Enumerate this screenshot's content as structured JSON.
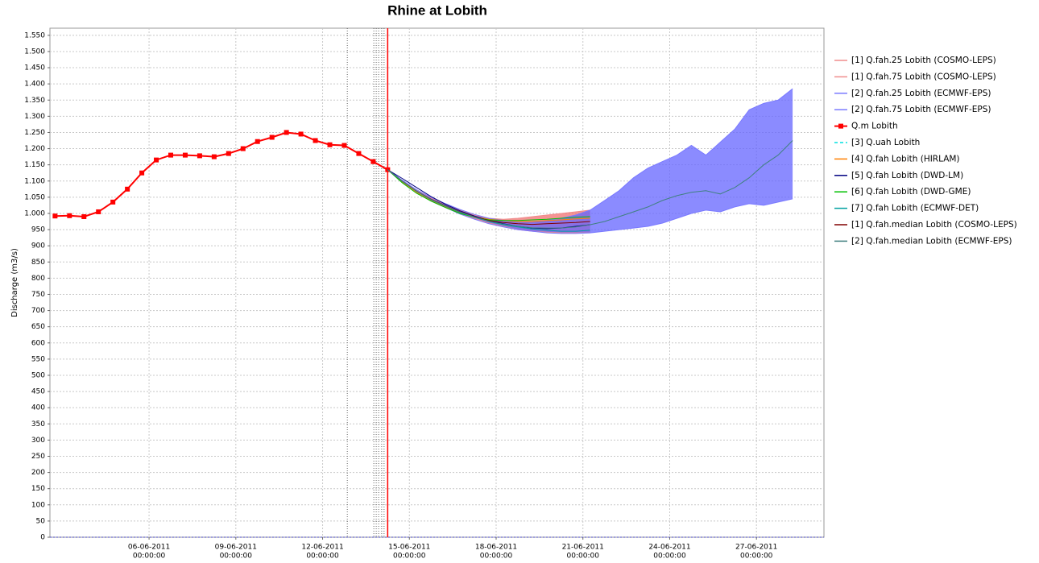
{
  "chart_data": {
    "type": "line",
    "title": "Rhine at Lobith",
    "y_label": "Discharge (m3/s)",
    "ylim": [
      0,
      1572
    ],
    "yticks": [
      0,
      50,
      100,
      150,
      200,
      250,
      300,
      350,
      400,
      450,
      500,
      550,
      600,
      650,
      700,
      750,
      800,
      850,
      900,
      950,
      {
        "value": 1000,
        "label": "1.000"
      },
      {
        "value": 1050,
        "label": "1.050"
      },
      {
        "value": 1100,
        "label": "1.100"
      },
      {
        "value": 1150,
        "label": "1.150"
      },
      {
        "value": 1200,
        "label": "1.200"
      },
      {
        "value": 1250,
        "label": "1.250"
      },
      {
        "value": 1300,
        "label": "1.300"
      },
      {
        "value": 1350,
        "label": "1.350"
      },
      {
        "value": 1400,
        "label": "1.400"
      },
      {
        "value": 1450,
        "label": "1.450"
      },
      {
        "value": 1500,
        "label": "1.500"
      },
      {
        "value": 1550,
        "label": "1.550"
      }
    ],
    "xlim": [
      "02-06-2011 13:45:00",
      "29-06-2011 08:00:00"
    ],
    "xticks": [
      {
        "value": "06-06-2011 00:00:00",
        "label": [
          "06-06-2011",
          "00:00:00"
        ]
      },
      {
        "value": "09-06-2011 00:00:00",
        "label": [
          "09-06-2011",
          "00:00:00"
        ]
      },
      {
        "value": "12-06-2011 00:00:00",
        "label": [
          "12-06-2011",
          "00:00:00"
        ]
      },
      {
        "value": "15-06-2011 00:00:00",
        "label": [
          "15-06-2011",
          "00:00:00"
        ]
      },
      {
        "value": "18-06-2011 00:00:00",
        "label": [
          "18-06-2011",
          "00:00:00"
        ]
      },
      {
        "value": "21-06-2011 00:00:00",
        "label": [
          "21-06-2011",
          "00:00:00"
        ]
      },
      {
        "value": "24-06-2011 00:00:00",
        "label": [
          "24-06-2011",
          "00:00:00"
        ]
      },
      {
        "value": "27-06-2011 00:00:00",
        "label": [
          "27-06-2011",
          "00:00:00"
        ]
      }
    ],
    "grid": true,
    "vlines": [
      {
        "x": "12-06-2011 20:30:00",
        "color": "#666666",
        "style": "dotted"
      },
      {
        "x": "13-06-2011 18:30:00",
        "color": "#666666",
        "style": "dotted"
      },
      {
        "x": "13-06-2011 20:30:00",
        "color": "#666666",
        "style": "dotted"
      },
      {
        "x": "13-06-2011 22:30:00",
        "color": "#666666",
        "style": "dotted"
      },
      {
        "x": "14-06-2011 01:00:00",
        "color": "#666666",
        "style": "dotted"
      },
      {
        "x": "14-06-2011 03:00:00",
        "color": "#666666",
        "style": "dotted"
      },
      {
        "x": "14-06-2011 06:00:00",
        "color": "#ff0000",
        "style": "solid"
      }
    ],
    "series": [
      {
        "name": "[1] Q.fah.25 Lobith (COSMO-LEPS)",
        "color": "#f08c8c",
        "x": [
          "14-06-2011 06:00:00",
          "14-06-2011 18:00:00",
          "15-06-2011 06:00:00",
          "15-06-2011 18:00:00",
          "16-06-2011 06:00:00",
          "16-06-2011 18:00:00",
          "17-06-2011 06:00:00",
          "17-06-2011 18:00:00",
          "18-06-2011 06:00:00",
          "18-06-2011 18:00:00",
          "19-06-2011 06:00:00",
          "19-06-2011 18:00:00",
          "20-06-2011 06:00:00",
          "20-06-2011 18:00:00",
          "21-06-2011 06:00:00"
        ],
        "values": [
          1135,
          1098,
          1066,
          1040,
          1020,
          1000,
          985,
          970,
          960,
          950,
          945,
          942,
          940,
          940,
          940
        ]
      },
      {
        "name": "[1] Q.fah.75 Lobith (COSMO-LEPS)",
        "color": "#f08c8c",
        "fill": "#f07070",
        "x": [
          "14-06-2011 06:00:00",
          "14-06-2011 18:00:00",
          "15-06-2011 06:00:00",
          "15-06-2011 18:00:00",
          "16-06-2011 06:00:00",
          "16-06-2011 18:00:00",
          "17-06-2011 06:00:00",
          "17-06-2011 18:00:00",
          "18-06-2011 06:00:00",
          "18-06-2011 18:00:00",
          "19-06-2011 06:00:00",
          "19-06-2011 18:00:00",
          "20-06-2011 06:00:00",
          "20-06-2011 18:00:00",
          "21-06-2011 06:00:00"
        ],
        "values": [
          1135,
          1102,
          1072,
          1048,
          1028,
          1010,
          995,
          985,
          982,
          985,
          990,
          995,
          1000,
          1005,
          1010
        ]
      },
      {
        "name": "[2] Q.fah.25 Lobith (ECMWF-EPS)",
        "color": "#7a7aff",
        "x": [
          "14-06-2011 06:00:00",
          "14-06-2011 18:00:00",
          "15-06-2011 06:00:00",
          "15-06-2011 18:00:00",
          "16-06-2011 06:00:00",
          "16-06-2011 18:00:00",
          "17-06-2011 06:00:00",
          "17-06-2011 18:00:00",
          "18-06-2011 06:00:00",
          "18-06-2011 18:00:00",
          "19-06-2011 06:00:00",
          "19-06-2011 18:00:00",
          "20-06-2011 06:00:00",
          "20-06-2011 18:00:00",
          "21-06-2011 06:00:00",
          "21-06-2011 18:00:00",
          "22-06-2011 06:00:00",
          "22-06-2011 18:00:00",
          "23-06-2011 06:00:00",
          "23-06-2011 18:00:00",
          "24-06-2011 06:00:00",
          "24-06-2011 18:00:00",
          "25-06-2011 06:00:00",
          "25-06-2011 18:00:00",
          "26-06-2011 06:00:00",
          "26-06-2011 18:00:00",
          "27-06-2011 06:00:00",
          "27-06-2011 18:00:00",
          "28-06-2011 06:00:00"
        ],
        "values": [
          1135,
          1098,
          1065,
          1038,
          1018,
          998,
          982,
          968,
          958,
          950,
          945,
          940,
          938,
          938,
          940,
          945,
          950,
          955,
          960,
          970,
          985,
          1000,
          1010,
          1005,
          1020,
          1030,
          1025,
          1035,
          1045
        ]
      },
      {
        "name": "[2] Q.fah.75 Lobith (ECMWF-EPS)",
        "color": "#7a7aff",
        "fill": "#6464ff",
        "x": [
          "14-06-2011 06:00:00",
          "14-06-2011 18:00:00",
          "15-06-2011 06:00:00",
          "15-06-2011 18:00:00",
          "16-06-2011 06:00:00",
          "16-06-2011 18:00:00",
          "17-06-2011 06:00:00",
          "17-06-2011 18:00:00",
          "18-06-2011 06:00:00",
          "18-06-2011 18:00:00",
          "19-06-2011 06:00:00",
          "19-06-2011 18:00:00",
          "20-06-2011 06:00:00",
          "20-06-2011 18:00:00",
          "21-06-2011 06:00:00",
          "21-06-2011 18:00:00",
          "22-06-2011 06:00:00",
          "22-06-2011 18:00:00",
          "23-06-2011 06:00:00",
          "23-06-2011 18:00:00",
          "24-06-2011 06:00:00",
          "24-06-2011 18:00:00",
          "25-06-2011 06:00:00",
          "25-06-2011 18:00:00",
          "26-06-2011 06:00:00",
          "26-06-2011 18:00:00",
          "27-06-2011 06:00:00",
          "27-06-2011 18:00:00",
          "28-06-2011 06:00:00"
        ],
        "values": [
          1135,
          1103,
          1073,
          1050,
          1030,
          1012,
          997,
          985,
          978,
          975,
          975,
          978,
          985,
          995,
          1010,
          1040,
          1070,
          1110,
          1140,
          1160,
          1180,
          1210,
          1180,
          1220,
          1260,
          1320,
          1340,
          1350,
          1385
        ]
      },
      {
        "name": "Q.m Lobith",
        "color": "#ff0000",
        "marker": "square",
        "x": [
          "02-06-2011 18:00:00",
          "03-06-2011 06:00:00",
          "03-06-2011 18:00:00",
          "04-06-2011 06:00:00",
          "04-06-2011 18:00:00",
          "05-06-2011 06:00:00",
          "05-06-2011 18:00:00",
          "06-06-2011 06:00:00",
          "06-06-2011 18:00:00",
          "07-06-2011 06:00:00",
          "07-06-2011 18:00:00",
          "08-06-2011 06:00:00",
          "08-06-2011 18:00:00",
          "09-06-2011 06:00:00",
          "09-06-2011 18:00:00",
          "10-06-2011 06:00:00",
          "10-06-2011 18:00:00",
          "11-06-2011 06:00:00",
          "11-06-2011 18:00:00",
          "12-06-2011 06:00:00",
          "12-06-2011 18:00:00",
          "13-06-2011 06:00:00",
          "13-06-2011 18:00:00",
          "14-06-2011 06:00:00"
        ],
        "values": [
          992,
          993,
          990,
          1005,
          1035,
          1075,
          1125,
          1165,
          1180,
          1180,
          1178,
          1175,
          1185,
          1200,
          1222,
          1235,
          1250,
          1245,
          1225,
          1212,
          1210,
          1185,
          1160,
          1135
        ]
      },
      {
        "name": "[3] Q.uah Lobith",
        "color": "#00e0e0",
        "dash": true,
        "x": [
          "14-06-2011 06:00:00",
          "14-06-2011 18:00:00",
          "15-06-2011 06:00:00",
          "15-06-2011 18:00:00",
          "16-06-2011 06:00:00"
        ],
        "values": [
          1135,
          1100,
          1068,
          1043,
          1022
        ]
      },
      {
        "name": "[4] Q.fah Lobith (HIRLAM)",
        "color": "#ff8000",
        "x": [
          "14-06-2011 06:00:00",
          "14-06-2011 18:00:00",
          "15-06-2011 06:00:00",
          "15-06-2011 18:00:00",
          "16-06-2011 06:00:00",
          "16-06-2011 18:00:00",
          "17-06-2011 06:00:00",
          "17-06-2011 18:00:00",
          "18-06-2011 06:00:00",
          "18-06-2011 18:00:00",
          "19-06-2011 06:00:00",
          "19-06-2011 18:00:00",
          "20-06-2011 06:00:00",
          "20-06-2011 18:00:00",
          "21-06-2011 06:00:00"
        ],
        "values": [
          1135,
          1098,
          1065,
          1040,
          1020,
          1002,
          990,
          982,
          978,
          975,
          975,
          978,
          980,
          983,
          985
        ]
      },
      {
        "name": "[5] Q.fah Lobith (DWD-LM)",
        "color": "#000080",
        "x": [
          "14-06-2011 06:00:00",
          "14-06-2011 18:00:00",
          "15-06-2011 06:00:00",
          "15-06-2011 18:00:00",
          "16-06-2011 06:00:00",
          "16-06-2011 18:00:00",
          "17-06-2011 06:00:00",
          "17-06-2011 18:00:00",
          "18-06-2011 06:00:00",
          "18-06-2011 18:00:00",
          "19-06-2011 06:00:00",
          "19-06-2011 18:00:00",
          "20-06-2011 06:00:00",
          "20-06-2011 18:00:00",
          "21-06-2011 06:00:00"
        ],
        "values": [
          1135,
          1108,
          1080,
          1052,
          1028,
          1008,
          992,
          978,
          968,
          960,
          955,
          953,
          955,
          960,
          965
        ]
      },
      {
        "name": "[6] Q.fah Lobith (DWD-GME)",
        "color": "#00c000",
        "x": [
          "14-06-2011 06:00:00",
          "14-06-2011 18:00:00",
          "15-06-2011 06:00:00",
          "15-06-2011 18:00:00",
          "16-06-2011 06:00:00",
          "16-06-2011 18:00:00",
          "17-06-2011 06:00:00",
          "17-06-2011 18:00:00",
          "18-06-2011 06:00:00",
          "18-06-2011 18:00:00",
          "19-06-2011 06:00:00",
          "19-06-2011 18:00:00",
          "20-06-2011 06:00:00",
          "20-06-2011 18:00:00",
          "21-06-2011 06:00:00"
        ],
        "values": [
          1135,
          1095,
          1062,
          1038,
          1018,
          1000,
          988,
          980,
          978,
          978,
          980,
          982,
          985,
          988,
          990
        ]
      },
      {
        "name": "[7] Q.fah Lobith (ECMWF-DET)",
        "color": "#00a0a0",
        "x": [
          "14-06-2011 06:00:00",
          "14-06-2011 18:00:00",
          "15-06-2011 06:00:00",
          "15-06-2011 18:00:00",
          "16-06-2011 06:00:00",
          "16-06-2011 18:00:00",
          "17-06-2011 06:00:00",
          "17-06-2011 18:00:00",
          "18-06-2011 06:00:00",
          "18-06-2011 18:00:00",
          "19-06-2011 06:00:00",
          "19-06-2011 18:00:00",
          "20-06-2011 06:00:00",
          "20-06-2011 18:00:00",
          "21-06-2011 06:00:00"
        ],
        "values": [
          1135,
          1100,
          1068,
          1042,
          1022,
          1003,
          988,
          975,
          965,
          958,
          952,
          948,
          945,
          945,
          948
        ]
      },
      {
        "name": "[1] Q.fah.median Lobith (COSMO-LEPS)",
        "color": "#800000",
        "x": [
          "14-06-2011 06:00:00",
          "14-06-2011 18:00:00",
          "15-06-2011 06:00:00",
          "15-06-2011 18:00:00",
          "16-06-2011 06:00:00",
          "16-06-2011 18:00:00",
          "17-06-2011 06:00:00",
          "17-06-2011 18:00:00",
          "18-06-2011 06:00:00",
          "18-06-2011 18:00:00",
          "19-06-2011 06:00:00",
          "19-06-2011 18:00:00",
          "20-06-2011 06:00:00",
          "20-06-2011 18:00:00",
          "21-06-2011 06:00:00"
        ],
        "values": [
          1135,
          1100,
          1069,
          1044,
          1024,
          1005,
          990,
          978,
          972,
          968,
          966,
          968,
          970,
          972,
          975
        ]
      },
      {
        "name": "[2] Q.fah.median Lobith (ECMWF-EPS)",
        "color": "#408080",
        "x": [
          "14-06-2011 06:00:00",
          "14-06-2011 18:00:00",
          "15-06-2011 06:00:00",
          "15-06-2011 18:00:00",
          "16-06-2011 06:00:00",
          "16-06-2011 18:00:00",
          "17-06-2011 06:00:00",
          "17-06-2011 18:00:00",
          "18-06-2011 06:00:00",
          "18-06-2011 18:00:00",
          "19-06-2011 06:00:00",
          "19-06-2011 18:00:00",
          "20-06-2011 06:00:00",
          "20-06-2011 18:00:00",
          "21-06-2011 06:00:00",
          "21-06-2011 18:00:00",
          "22-06-2011 06:00:00",
          "22-06-2011 18:00:00",
          "23-06-2011 06:00:00",
          "23-06-2011 18:00:00",
          "24-06-2011 06:00:00",
          "24-06-2011 18:00:00",
          "25-06-2011 06:00:00",
          "25-06-2011 18:00:00",
          "26-06-2011 06:00:00",
          "26-06-2011 18:00:00",
          "27-06-2011 06:00:00",
          "27-06-2011 18:00:00",
          "28-06-2011 06:00:00"
        ],
        "values": [
          1135,
          1100,
          1069,
          1043,
          1023,
          1004,
          989,
          976,
          967,
          960,
          956,
          955,
          955,
          958,
          965,
          975,
          990,
          1005,
          1020,
          1040,
          1055,
          1065,
          1070,
          1060,
          1080,
          1110,
          1150,
          1180,
          1225
        ]
      }
    ]
  }
}
